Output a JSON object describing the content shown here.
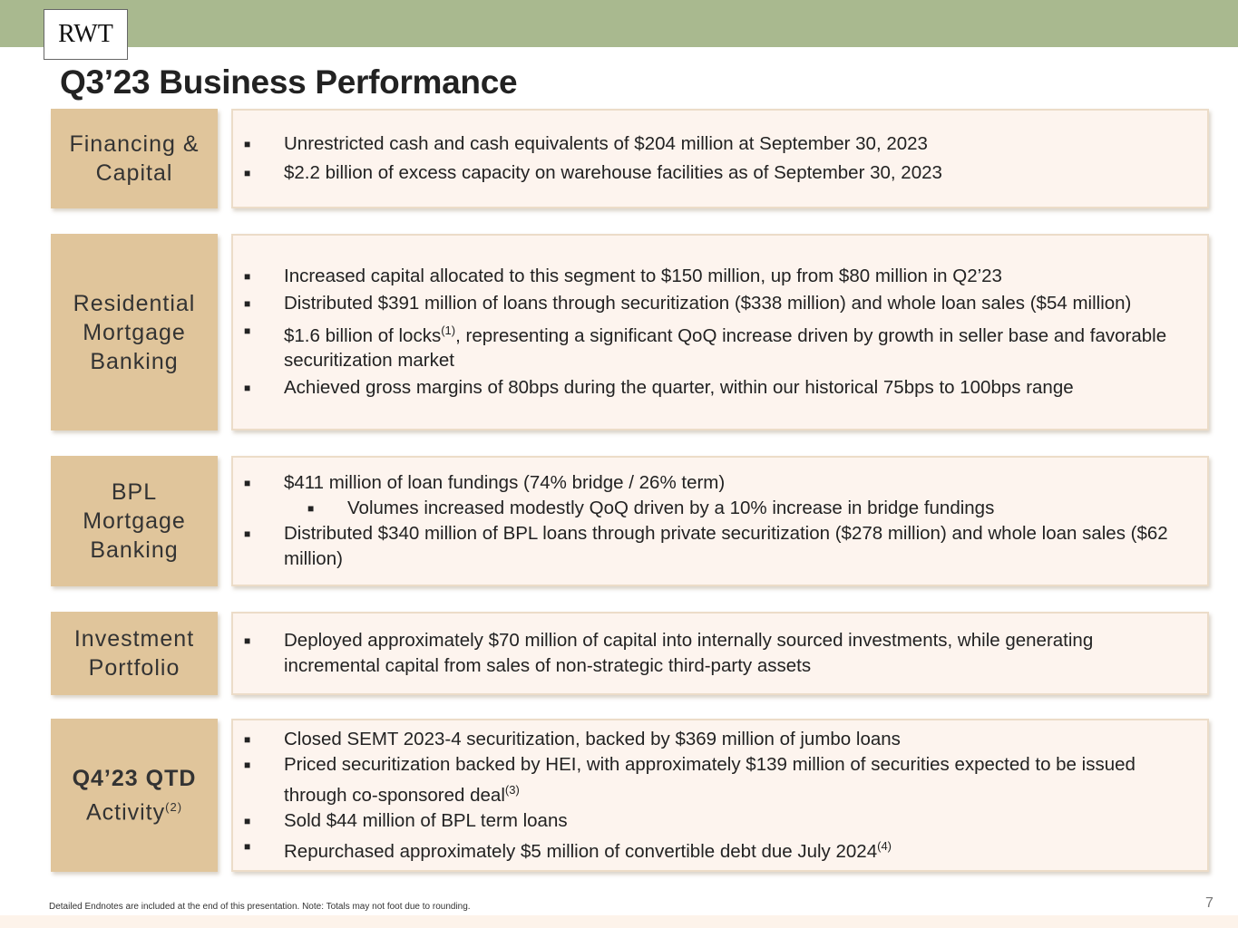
{
  "logo": "RWT",
  "title": "Q3’23 Business Performance",
  "sections": [
    {
      "label": [
        "Financing &",
        "Capital"
      ],
      "bullets": [
        {
          "text": "Unrestricted cash and cash equivalents of $204 million at September 30, 2023"
        },
        {
          "text": "$2.2 billion of excess capacity on warehouse facilities as of September 30, 2023"
        }
      ]
    },
    {
      "label": [
        "Residential",
        "Mortgage",
        "Banking"
      ],
      "bullets": [
        {
          "text": "Increased capital allocated to this segment to $150 million, up from $80 million in Q2’23"
        },
        {
          "text": "Distributed $391 million of loans through securitization ($338 million) and whole loan sales ($54 million)"
        },
        {
          "text": "$1.6 billion of locks",
          "sup": "(1)",
          "after": ", representing a significant QoQ increase driven by growth in seller base and favorable securitization market"
        },
        {
          "text": "Achieved gross margins of 80bps during the quarter, within our historical 75bps to 100bps range"
        }
      ]
    },
    {
      "label": [
        "BPL",
        "Mortgage",
        "Banking"
      ],
      "bullets": [
        {
          "text": "$411 million of loan fundings (74% bridge / 26% term)"
        },
        {
          "text": "Volumes increased modestly QoQ driven by a 10% increase in bridge fundings",
          "sub": true
        },
        {
          "text": "Distributed $340 million of BPL loans through private securitization ($278 million) and whole loan sales ($62 million)"
        }
      ]
    },
    {
      "label": [
        "Investment",
        "Portfolio"
      ],
      "bullets": [
        {
          "text": "Deployed approximately $70 million of capital into internally sourced investments, while generating incremental capital from sales of non-strategic third-party assets"
        }
      ]
    },
    {
      "label": [
        "Q4’23 QTD",
        "Activity"
      ],
      "label_sup": "(2)",
      "bullets": [
        {
          "text": "Closed SEMT 2023-4 securitization, backed by $369 million of jumbo loans"
        },
        {
          "text": "Priced securitization backed by HEI, with approximately $139 million of securities expected to be issued through co-sponsored deal",
          "sup": "(3)"
        },
        {
          "text": "Sold $44 million of BPL term loans"
        },
        {
          "text": "Repurchased approximately $5 million of convertible debt due July 2024",
          "sup": "(4)"
        }
      ]
    }
  ],
  "footnote": "Detailed Endnotes are included at the end of this presentation. Note: Totals may not foot due to rounding.",
  "page_number": "7"
}
